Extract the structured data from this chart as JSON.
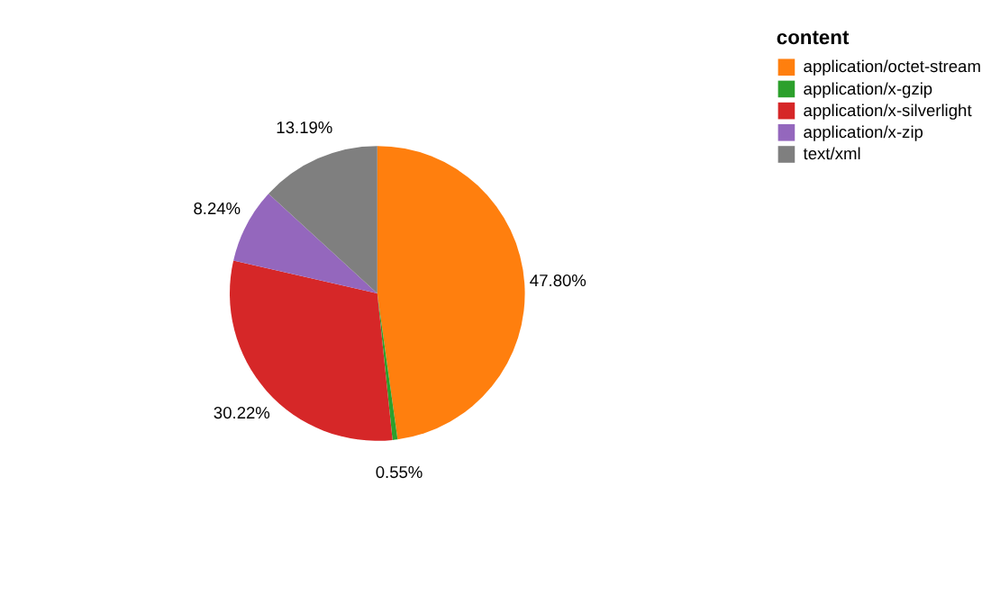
{
  "chart_data": {
    "type": "pie",
    "legend_title": "content",
    "legend": "top right",
    "categories": [
      "application/octet-stream",
      "application/x-gzip",
      "application/x-silverlight",
      "application/x-zip",
      "text/xml"
    ],
    "values": [
      47.8,
      0.55,
      30.22,
      8.24,
      13.19
    ],
    "value_labels": [
      "47.80%",
      "0.55%",
      "30.22%",
      "8.24%",
      "13.19%"
    ],
    "colors": [
      "#ff7f0e",
      "#2ca02c",
      "#d62728",
      "#9467bd",
      "#7f7f7f"
    ]
  }
}
